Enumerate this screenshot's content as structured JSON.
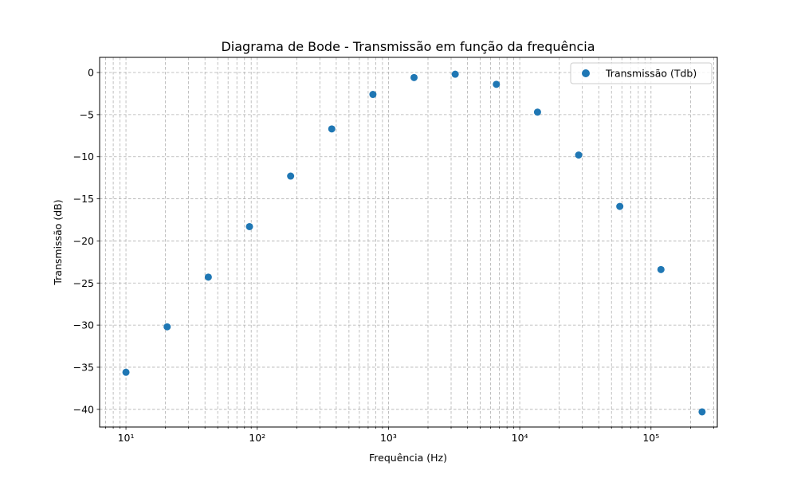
{
  "chart_data": {
    "type": "scatter",
    "title": "Diagrama de Bode - Transmissão em função da frequência",
    "xlabel": "Frequência (Hz)",
    "ylabel": "Transmissão (dB)",
    "x_scale": "log",
    "xlim": [
      6.3,
      320000
    ],
    "ylim": [
      -42.1,
      1.8
    ],
    "x_tick_labels": [
      "10¹",
      "10²",
      "10³",
      "10⁴",
      "10⁵"
    ],
    "y_ticks": [
      0,
      -5,
      -10,
      -15,
      -20,
      -25,
      -30,
      -35,
      -40
    ],
    "y_tick_labels": [
      "0",
      "−5",
      "−10",
      "−15",
      "−20",
      "−25",
      "−30",
      "−35",
      "−40"
    ],
    "grid": true,
    "grid_which": "both",
    "legend_position": "top-right",
    "series": [
      {
        "name": "Transmissão (Tdb)",
        "color": "#1f77b4",
        "marker": "circle",
        "x": [
          10,
          20.6,
          42.4,
          87.3,
          179.7,
          369.8,
          761.1,
          1566,
          3224,
          6636,
          13660,
          28110,
          57860,
          119100,
          245000
        ],
        "y": [
          -35.6,
          -30.2,
          -24.3,
          -18.3,
          -12.3,
          -6.7,
          -2.6,
          -0.6,
          -0.2,
          -1.4,
          -4.7,
          -9.8,
          -15.9,
          -23.4,
          -40.3
        ]
      }
    ]
  }
}
